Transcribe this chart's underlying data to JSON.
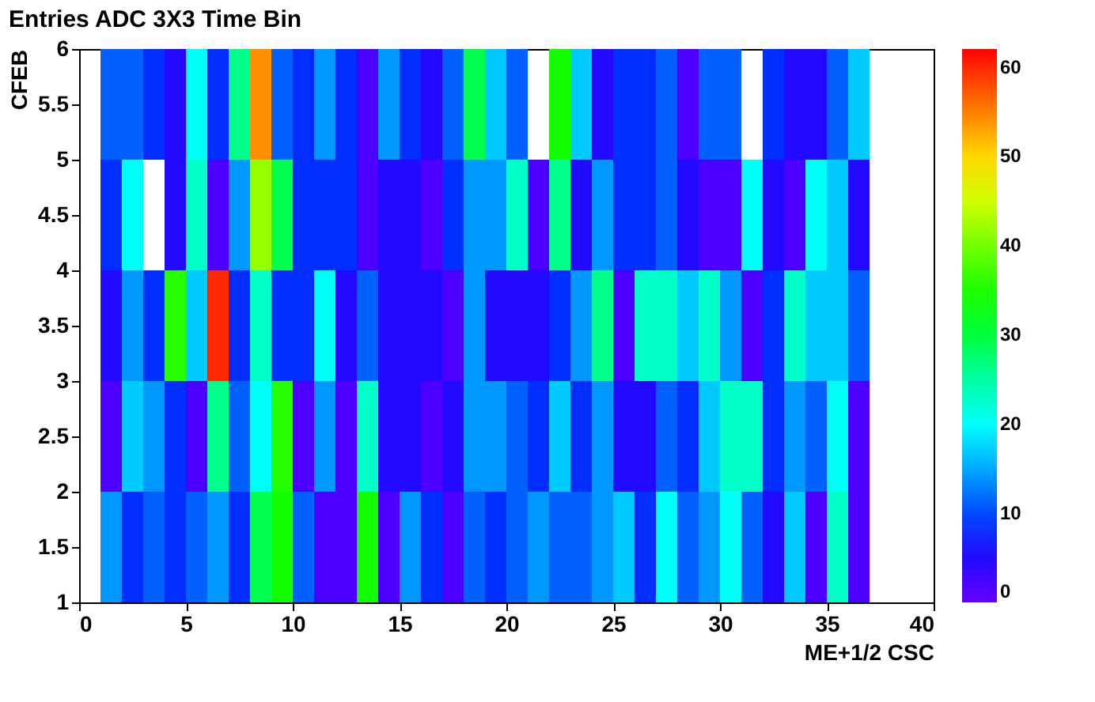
{
  "chart_data": {
    "type": "heatmap",
    "title": "Entries ADC 3X3 Time Bin",
    "xlabel": "ME+1/2 CSC",
    "ylabel": "CFEB",
    "x": [
      0.5,
      1.5,
      2.5,
      3.5,
      4.5,
      5.5,
      6.5,
      7.5,
      8.5,
      9.5,
      10.5,
      11.5,
      12.5,
      13.5,
      14.5,
      15.5,
      16.5,
      17.5,
      18.5,
      19.5,
      20.5,
      21.5,
      22.5,
      23.5,
      24.5,
      25.5,
      26.5,
      27.5,
      28.5,
      29.5,
      30.5,
      31.5,
      32.5,
      33.5,
      34.5,
      35.5,
      36.5,
      37.5,
      38.5,
      39.5
    ],
    "y": [
      5.5,
      4.5,
      3.5,
      2.5,
      1.5
    ],
    "cells": [
      [
        null,
        11,
        11,
        8,
        5,
        20,
        8,
        26,
        54,
        11,
        8,
        14,
        8,
        2,
        14,
        8,
        5,
        11,
        29,
        17,
        11,
        null,
        34,
        17,
        5,
        8,
        8,
        11,
        2,
        11,
        11,
        null,
        8,
        5,
        5,
        11,
        17,
        null,
        null,
        null
      ],
      [
        null,
        8,
        20,
        null,
        5,
        23,
        2,
        14,
        42,
        29,
        8,
        8,
        8,
        2,
        5,
        5,
        2,
        8,
        14,
        14,
        23,
        2,
        26,
        5,
        14,
        8,
        8,
        11,
        5,
        2,
        2,
        20,
        5,
        2,
        20,
        17,
        5,
        null,
        null,
        null
      ],
      [
        null,
        5,
        14,
        8,
        36,
        17,
        60,
        8,
        23,
        8,
        8,
        20,
        5,
        11,
        5,
        5,
        5,
        2,
        14,
        5,
        5,
        5,
        8,
        14,
        26,
        2,
        23,
        23,
        17,
        23,
        14,
        2,
        8,
        23,
        17,
        17,
        11,
        null,
        null,
        null
      ],
      [
        null,
        2,
        17,
        14,
        8,
        2,
        26,
        11,
        20,
        36,
        2,
        14,
        2,
        23,
        5,
        5,
        2,
        5,
        14,
        14,
        11,
        8,
        17,
        8,
        14,
        5,
        5,
        11,
        8,
        17,
        23,
        23,
        8,
        14,
        11,
        20,
        2,
        null,
        null,
        null
      ],
      [
        null,
        14,
        8,
        11,
        8,
        11,
        14,
        8,
        29,
        34,
        11,
        2,
        2,
        34,
        2,
        14,
        8,
        2,
        11,
        8,
        11,
        14,
        11,
        11,
        14,
        17,
        8,
        20,
        11,
        14,
        20,
        11,
        5,
        17,
        2,
        23,
        2,
        null,
        null,
        null
      ]
    ],
    "colors": [
      "#6600ff",
      "#3300ff",
      "#0011ff",
      "#0044ff",
      "#0088ff",
      "#00bbff",
      "#00ffff",
      "#00ffcc",
      "#00ff88",
      "#00ff44",
      "#00ff00",
      "#22ff00",
      "#66ff00",
      "#99ff00",
      "#ddff00",
      "#ffee00",
      "#ffaa00",
      "#ff7700",
      "#ff3300",
      "#ff0000"
    ],
    "clim": [
      0,
      62
    ],
    "cticks": [
      0,
      10,
      20,
      30,
      40,
      50,
      60
    ],
    "xlim": [
      0,
      40
    ],
    "xticks": [
      0,
      5,
      10,
      15,
      20,
      25,
      30,
      35,
      40
    ],
    "ylim": [
      1,
      6
    ],
    "yticks": [
      1,
      1.5,
      2,
      2.5,
      3,
      3.5,
      4,
      4.5,
      5,
      5.5,
      6
    ],
    "grid": false
  }
}
